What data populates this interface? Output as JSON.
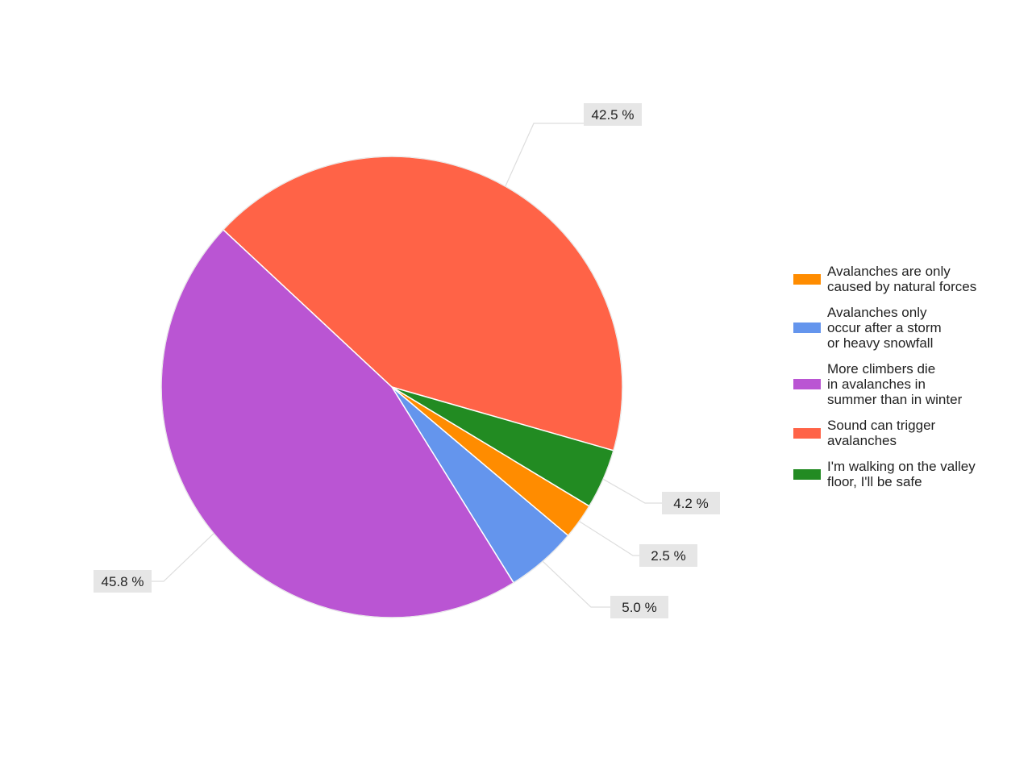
{
  "chart_data": {
    "type": "pie",
    "start_angle_deg": -47,
    "direction": "clockwise",
    "slices": [
      {
        "label": "Sound can trigger avalanches",
        "legend_text": "Sound can trigger\navalanches",
        "value": 42.5,
        "value_label": "42.5 %",
        "color": "#ff6347"
      },
      {
        "label": "I'm walking on the valley floor, I'll be safe",
        "legend_text": "I'm walking on the valley\nfloor, I'll be safe",
        "value": 4.2,
        "value_label": "4.2 %",
        "color": "#228b22"
      },
      {
        "label": "Avalanches are only caused by natural forces",
        "legend_text": "Avalanches are only\ncaused by natural forces",
        "value": 2.5,
        "value_label": "2.5 %",
        "color": "#ff8c00"
      },
      {
        "label": "Avalanches only occur after a storm or heavy snowfall",
        "legend_text": "Avalanches only\noccur after a storm\nor heavy snowfall",
        "value": 5.0,
        "value_label": "5.0 %",
        "color": "#6495ed"
      },
      {
        "label": "More climbers die in avalanches in summer than in winter",
        "legend_text": "More climbers die\nin avalanches in\nsummer than in winter",
        "value": 45.8,
        "value_label": "45.8 %",
        "color": "#ba55d3"
      }
    ],
    "legend": {
      "placement": "right",
      "order": [
        "Avalanches are only caused by natural forces",
        "Avalanches only occur after a storm or heavy snowfall",
        "More climbers die in avalanches in summer than in winter",
        "Sound can trigger avalanches",
        "I'm walking on the valley floor, I'll be safe"
      ]
    }
  }
}
